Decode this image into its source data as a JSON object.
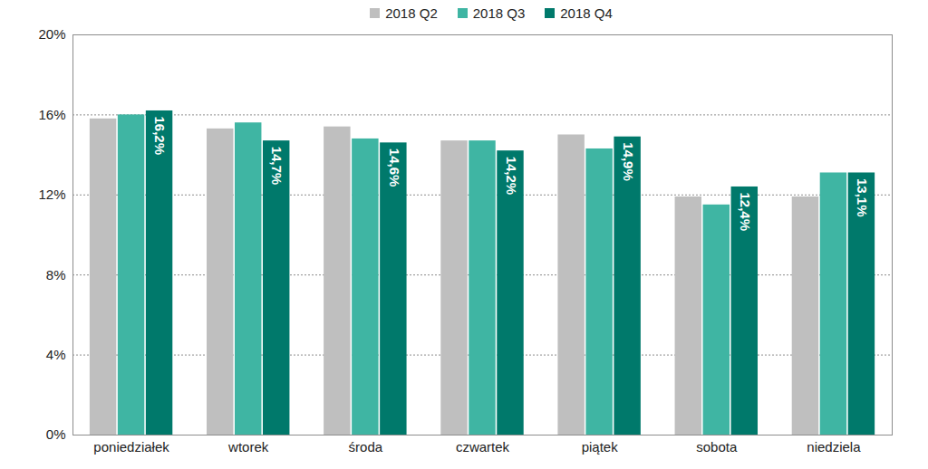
{
  "chart_data": {
    "type": "bar",
    "categories": [
      "poniedziałek",
      "wtorek",
      "środa",
      "czwartek",
      "piątek",
      "sobota",
      "niedziela"
    ],
    "series": [
      {
        "name": "2018 Q2",
        "color": "#bfbfbf",
        "values": [
          15.8,
          15.3,
          15.4,
          14.7,
          15.0,
          11.9,
          11.9
        ]
      },
      {
        "name": "2018 Q3",
        "color": "#3fb5a3",
        "values": [
          16.0,
          15.6,
          14.8,
          14.7,
          14.3,
          11.5,
          13.1
        ]
      },
      {
        "name": "2018 Q4",
        "color": "#00796b",
        "values": [
          16.2,
          14.7,
          14.6,
          14.2,
          14.9,
          12.4,
          13.1
        ],
        "data_labels": true,
        "value_labels": [
          "16,2%",
          "14,7%",
          "14,6%",
          "14,2%",
          "14,9%",
          "12,4%",
          "13,1%"
        ]
      }
    ],
    "ylim": [
      0,
      20
    ],
    "yticks": [
      {
        "value": 0,
        "label": "0%"
      },
      {
        "value": 4,
        "label": "4%"
      },
      {
        "value": 8,
        "label": "8%"
      },
      {
        "value": 12,
        "label": "12%"
      },
      {
        "value": 16,
        "label": "16%"
      },
      {
        "value": 20,
        "label": "20%"
      }
    ],
    "grid": true,
    "legend": "top"
  }
}
